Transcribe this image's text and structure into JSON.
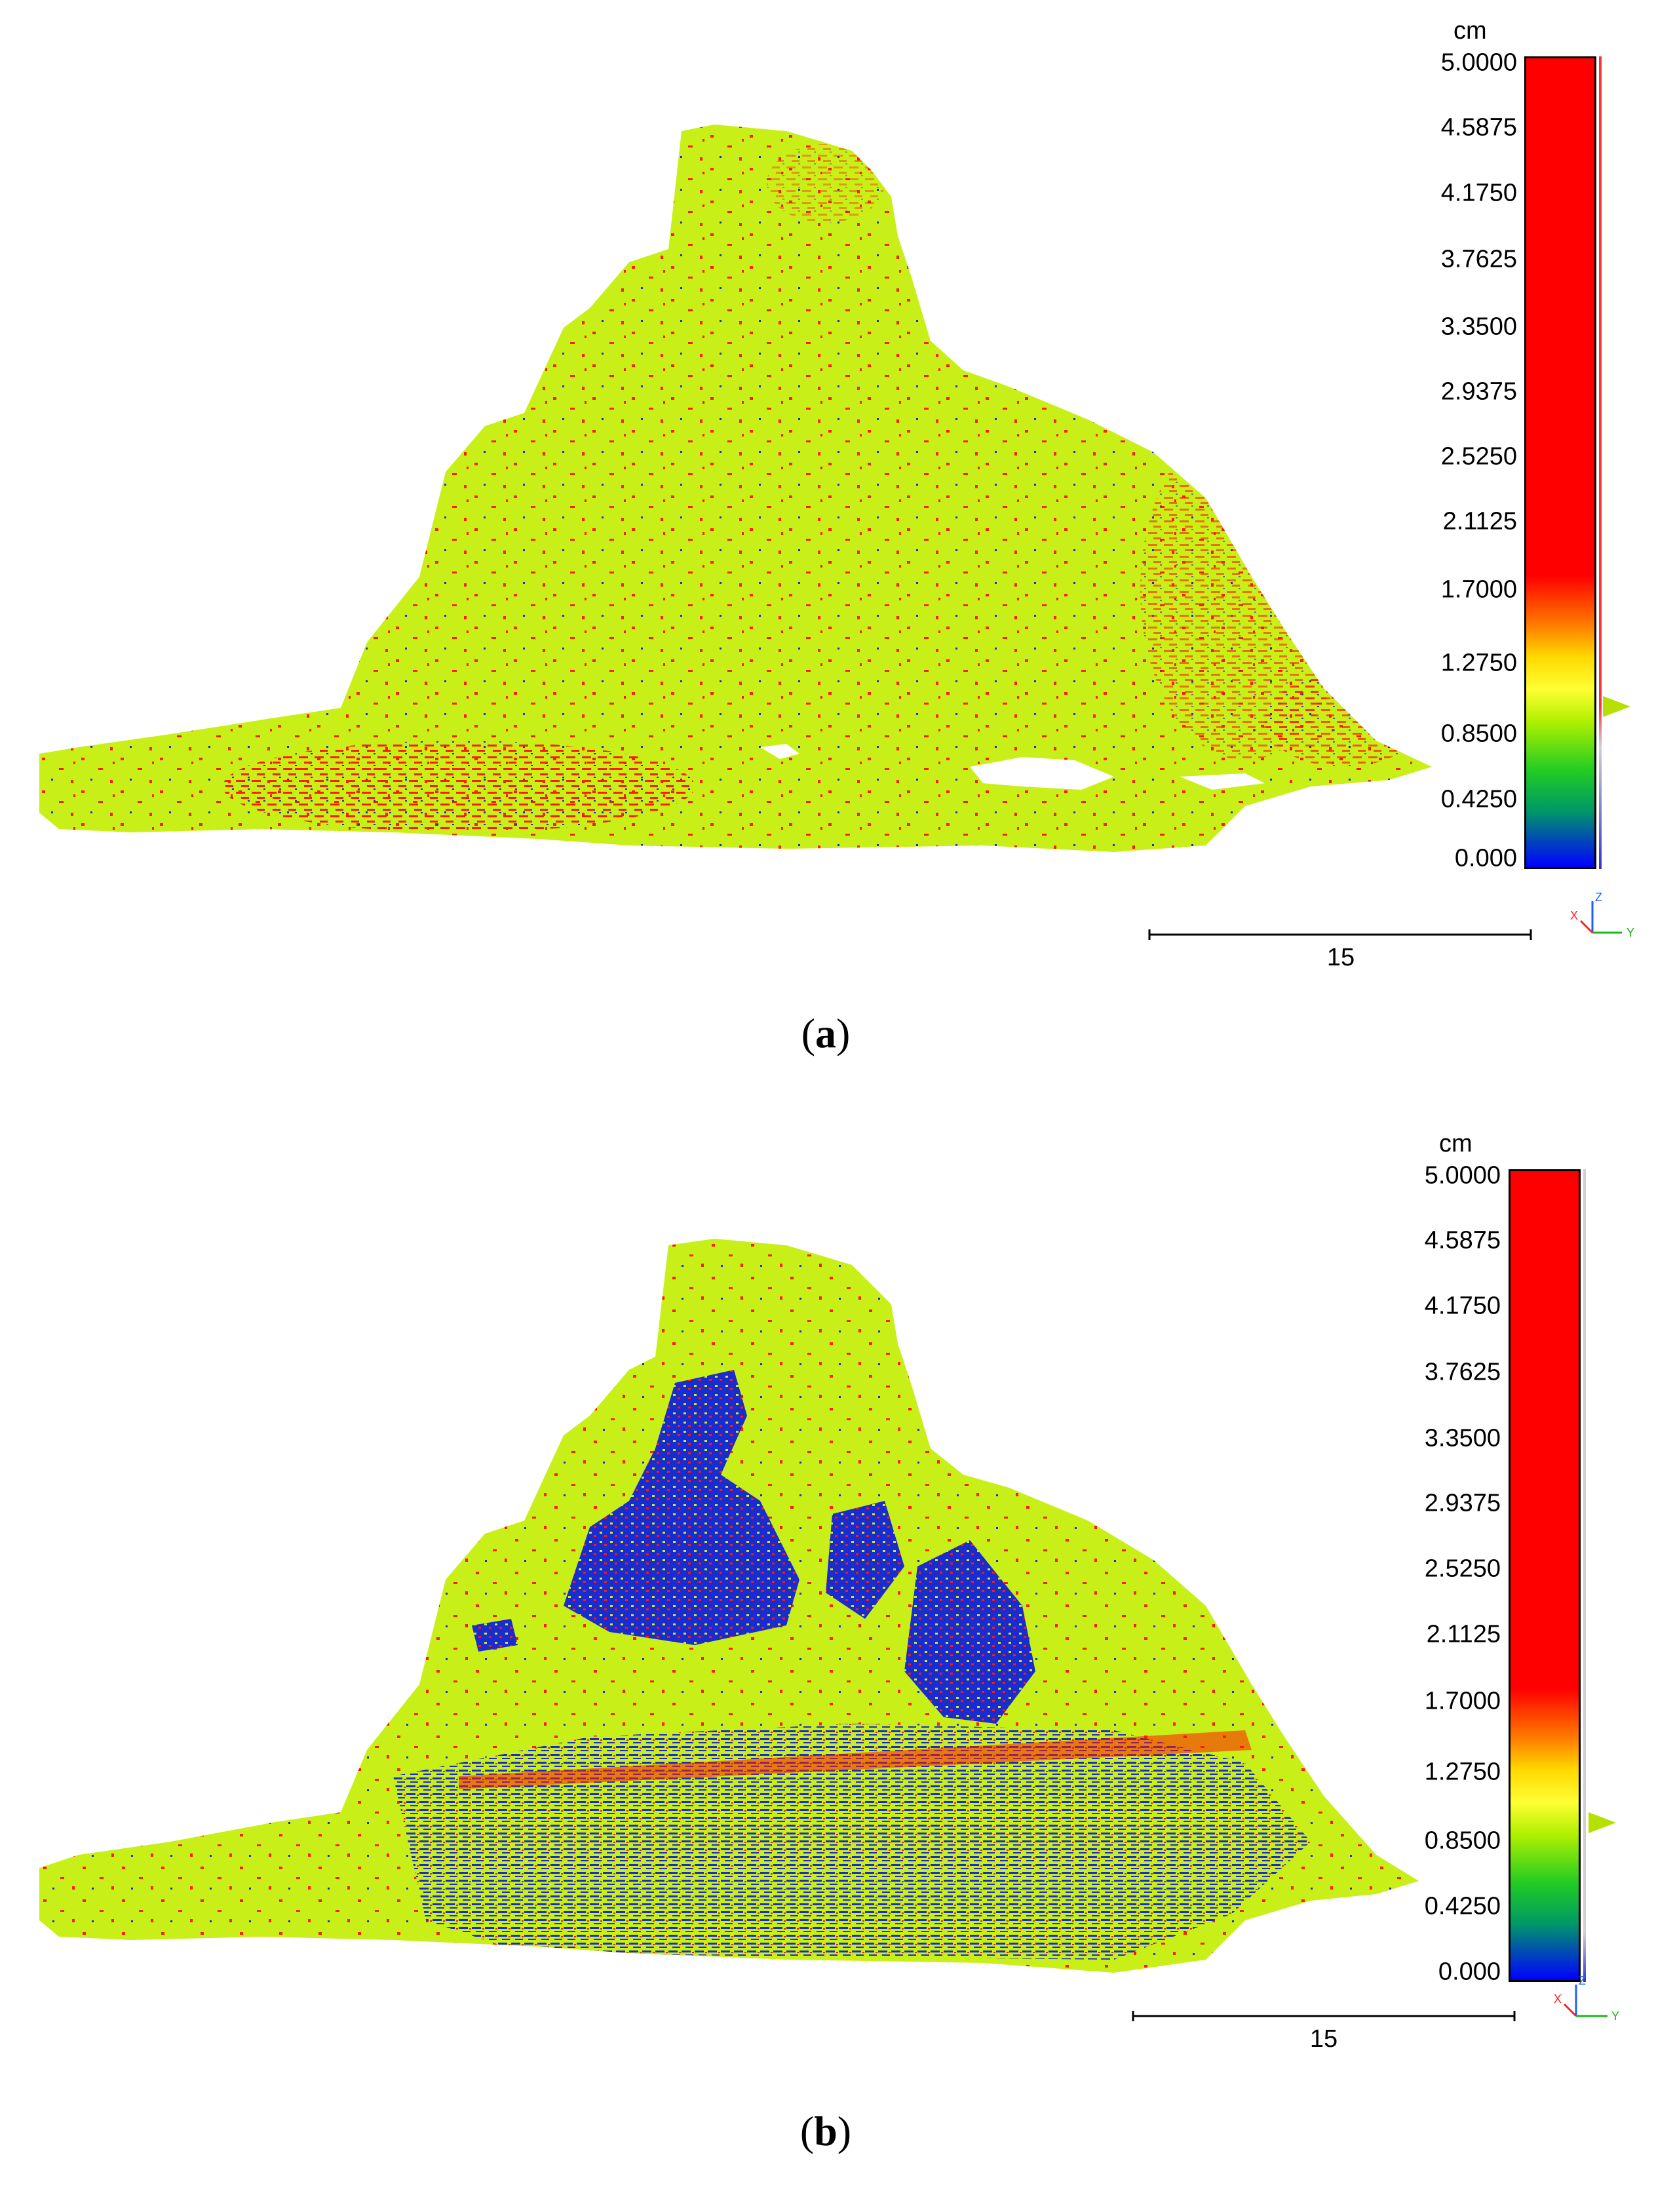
{
  "colors": {
    "surface": "#c8f018",
    "high": "#ff1a00",
    "low": "#1a2bd0",
    "ramp": [
      "#ff0000",
      "#ff0000",
      "#ff0000",
      "#ff7a00",
      "#ffd800",
      "#ffff33",
      "#b0f000",
      "#22cc22",
      "#009966",
      "#0000ff"
    ]
  },
  "panels": [
    {
      "caption_letter": "a",
      "colorbar": {
        "unit": "cm",
        "ticks": [
          "5.0000",
          "4.5875",
          "4.1750",
          "3.7625",
          "3.3500",
          "2.9375",
          "2.5250",
          "2.1125",
          "1.7000",
          "1.2750",
          "0.8500",
          "0.4250",
          "0.000"
        ]
      },
      "scale_label": "15",
      "axis_labels": {
        "z": "Z",
        "x": "X",
        "y": "Y"
      }
    },
    {
      "caption_letter": "b",
      "colorbar": {
        "unit": "cm",
        "ticks": [
          "5.0000",
          "4.5875",
          "4.1750",
          "3.7625",
          "3.3500",
          "2.9375",
          "2.5250",
          "2.1125",
          "1.7000",
          "1.2750",
          "0.8500",
          "0.4250",
          "0.000"
        ]
      },
      "scale_label": "15",
      "axis_labels": {
        "z": "Z",
        "x": "X",
        "y": "Y"
      }
    }
  ]
}
